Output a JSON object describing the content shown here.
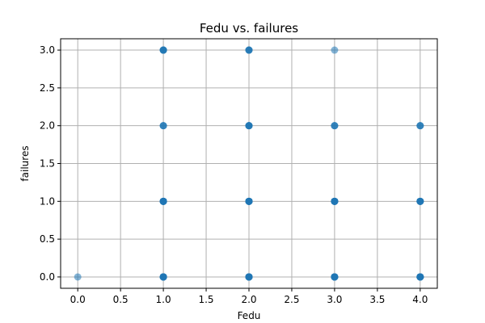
{
  "chart_data": {
    "type": "scatter",
    "title": "Fedu vs. failures",
    "xlabel": "Fedu",
    "ylabel": "failures",
    "xlim": [
      -0.2,
      4.2
    ],
    "ylim": [
      -0.15,
      3.15
    ],
    "xticks": [
      0.0,
      0.5,
      1.0,
      1.5,
      2.0,
      2.5,
      3.0,
      3.5,
      4.0
    ],
    "yticks": [
      0.0,
      0.5,
      1.0,
      1.5,
      2.0,
      2.5,
      3.0
    ],
    "xtick_labels": [
      "0.0",
      "0.5",
      "1.0",
      "1.5",
      "2.0",
      "2.5",
      "3.0",
      "3.5",
      "4.0"
    ],
    "ytick_labels": [
      "0.0",
      "0.5",
      "1.0",
      "1.5",
      "2.0",
      "2.5",
      "3.0"
    ],
    "grid": true,
    "marker_color": "#1f77b4",
    "points": [
      {
        "x": 0,
        "y": 0,
        "count": 1
      },
      {
        "x": 1,
        "y": 0,
        "count": 10
      },
      {
        "x": 1,
        "y": 1,
        "count": 8
      },
      {
        "x": 1,
        "y": 2,
        "count": 3
      },
      {
        "x": 1,
        "y": 3,
        "count": 5
      },
      {
        "x": 2,
        "y": 0,
        "count": 10
      },
      {
        "x": 2,
        "y": 1,
        "count": 8
      },
      {
        "x": 2,
        "y": 2,
        "count": 5
      },
      {
        "x": 2,
        "y": 3,
        "count": 4
      },
      {
        "x": 3,
        "y": 0,
        "count": 10
      },
      {
        "x": 3,
        "y": 1,
        "count": 8
      },
      {
        "x": 3,
        "y": 2,
        "count": 3
      },
      {
        "x": 3,
        "y": 3,
        "count": 1
      },
      {
        "x": 4,
        "y": 0,
        "count": 10
      },
      {
        "x": 4,
        "y": 1,
        "count": 6
      },
      {
        "x": 4,
        "y": 2,
        "count": 3
      }
    ]
  }
}
